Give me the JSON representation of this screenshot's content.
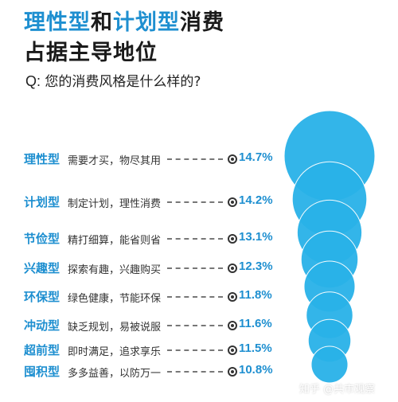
{
  "header": {
    "title_line1_part1": "理性型",
    "title_line1_part2": "和",
    "title_line1_part3": "计划型",
    "title_line1_part4": "消费",
    "title_line2": "占据主导地位",
    "question_prefix": "Q:",
    "question": "您的消费风格是什么样的?"
  },
  "colors": {
    "accent": "#1e8fd0",
    "bubble": "#29b2e8",
    "text": "#1a1a1a"
  },
  "chart_data": {
    "type": "bubble-list",
    "title": "理性型和计划型消费占据主导地位",
    "question": "您的消费风格是什么样的?",
    "items": [
      {
        "type": "理性型",
        "desc": "需要才买，物尽其用",
        "value": 14.7,
        "label": "14.7%"
      },
      {
        "type": "计划型",
        "desc": "制定计划，理性消费",
        "value": 14.2,
        "label": "14.2%"
      },
      {
        "type": "节俭型",
        "desc": "精打细算，能省则省",
        "value": 13.1,
        "label": "13.1%"
      },
      {
        "type": "兴趣型",
        "desc": "探索有趣，兴趣购买",
        "value": 12.3,
        "label": "12.3%"
      },
      {
        "type": "环保型",
        "desc": "绿色健康，节能环保",
        "value": 11.8,
        "label": "11.8%"
      },
      {
        "type": "冲动型",
        "desc": "缺乏规划，易被说服",
        "value": 11.6,
        "label": "11.6%"
      },
      {
        "type": "超前型",
        "desc": "即时满足，追求享乐",
        "value": 11.5,
        "label": "11.5%"
      },
      {
        "type": "囤积型",
        "desc": "多多益善，以防万一",
        "value": 10.8,
        "label": "10.8%"
      }
    ]
  },
  "watermark": "知乎 @共市观察"
}
